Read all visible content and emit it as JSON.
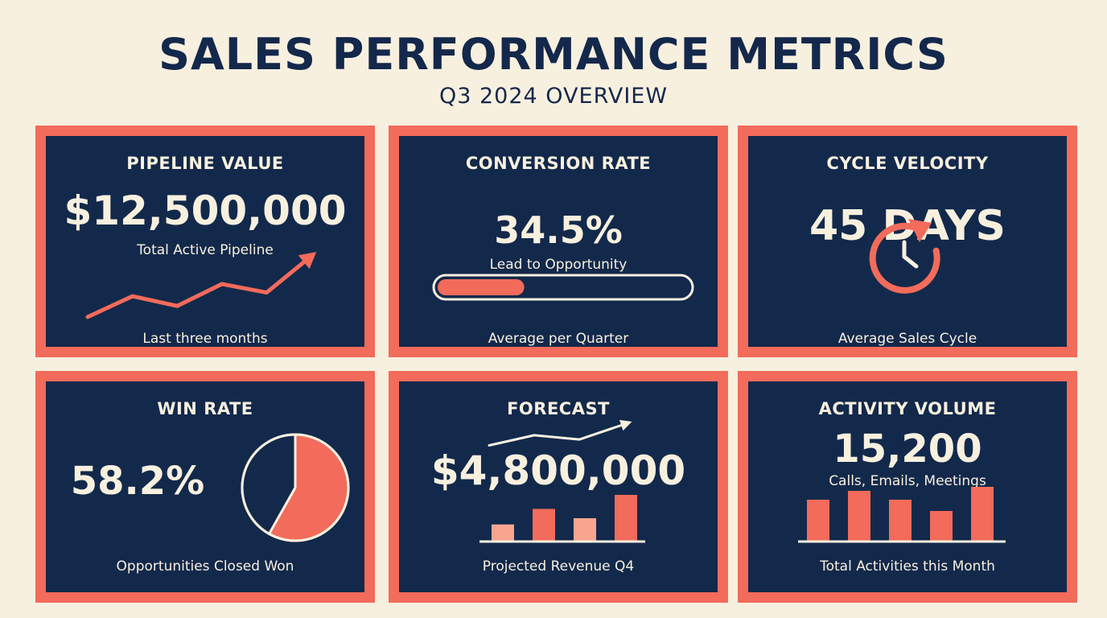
{
  "header": {
    "title": "SALES PERFORMANCE METRICS",
    "subtitle": "Q3 2024 OVERVIEW"
  },
  "colors": {
    "background": "#f8f0df",
    "navy": "#13294b",
    "coral": "#f26b5b",
    "light_coral": "#f7a58f",
    "cream": "#f8f0df"
  },
  "cards": {
    "pipeline": {
      "title": "PIPELINE VALUE",
      "value": "$12,500,000",
      "caption": "Total Active Pipeline",
      "footer": "Last three months"
    },
    "conversion": {
      "title": "CONVERSION RATE",
      "value": "34.5%",
      "caption": "Lead to Opportunity",
      "footer": "Average per Quarter"
    },
    "cycle": {
      "title": "CYCLE VELOCITY",
      "value": "45 DAYS",
      "footer": "Average Sales Cycle",
      "icon": "clock-refresh-icon"
    },
    "win": {
      "title": "WIN RATE",
      "value": "58.2%",
      "footer": "Opportunities Closed Won"
    },
    "forecast": {
      "title": "FORECAST",
      "value": "$4,800,000",
      "footer": "Projected Revenue Q4"
    },
    "activity": {
      "title": "ACTIVITY VOLUME",
      "value": "15,200",
      "caption": "Calls, Emails, Meetings",
      "footer": "Total Activities this Month"
    }
  },
  "chart_data": [
    {
      "type": "line",
      "panel": "pipeline",
      "x": [
        1,
        2,
        3,
        4,
        5,
        6
      ],
      "y": [
        1,
        2.7,
        1.9,
        3.7,
        3.0,
        6.0
      ],
      "ylim": [
        0,
        7
      ],
      "arrow_head": true
    },
    {
      "type": "bar",
      "panel": "conversion",
      "orientation": "horizontal-progress",
      "values": [
        0.345
      ],
      "ylim": [
        0,
        1
      ]
    },
    {
      "type": "pie",
      "panel": "win",
      "values": [
        58.2,
        41.8
      ],
      "colors": [
        "#f26b5b",
        "#13294b"
      ]
    },
    {
      "type": "bar",
      "panel": "forecast",
      "values": [
        22,
        42,
        30,
        60
      ],
      "colors": [
        "#f7a58f",
        "#f26b5b",
        "#f7a58f",
        "#f26b5b"
      ],
      "ylim": [
        0,
        60
      ],
      "trend": {
        "x": [
          0,
          1,
          2,
          3
        ],
        "y": [
          2.0,
          4.4,
          3.4,
          7.0
        ],
        "ylim": [
          0,
          8
        ]
      }
    },
    {
      "type": "bar",
      "panel": "activity",
      "values": [
        52,
        63,
        52,
        38,
        68
      ],
      "ylim": [
        0,
        68
      ]
    }
  ]
}
